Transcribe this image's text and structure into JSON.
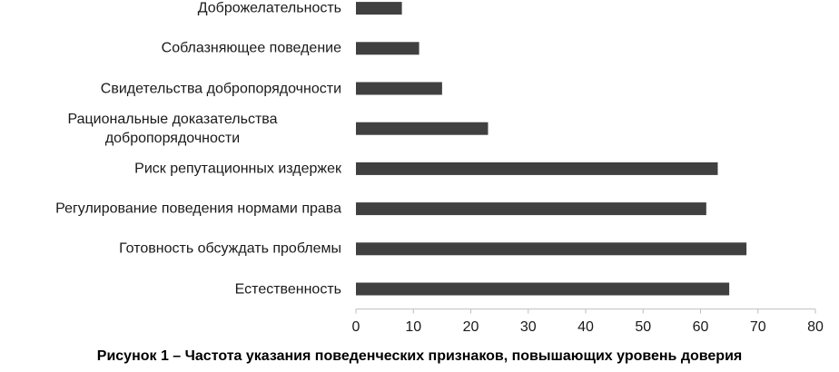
{
  "chart_data": {
    "type": "bar",
    "orientation": "horizontal",
    "title": "Рисунок 1 – Частота указания поведенческих признаков, повышающих уровень доверия",
    "categories": [
      "Доброжелательность",
      "Соблазняющее поведение",
      "Свидетельства добропорядочности",
      "Рациональные доказательства добропорядочности",
      "Риск репутационных издержек",
      "Регулирование поведения нормами права",
      "Готовность обсуждать проблемы",
      "Естественность"
    ],
    "values": [
      8,
      11,
      15,
      23,
      63,
      61,
      68,
      65
    ],
    "color": "#404040",
    "xlim": [
      0,
      80
    ],
    "xticks": [
      0,
      10,
      20,
      30,
      40,
      50,
      60,
      70,
      80
    ],
    "grid": false
  }
}
